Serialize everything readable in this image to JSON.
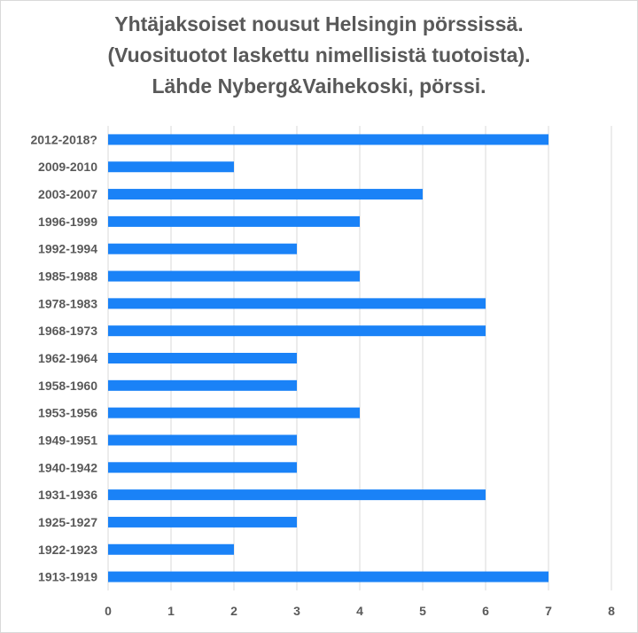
{
  "chart_data": {
    "type": "bar",
    "orientation": "horizontal",
    "title_lines": [
      "Yhtäjaksoiset nousut Helsingin pörssissä.",
      "(Vuosituotot laskettu nimellisistä tuotoista).",
      "Lähde Nyberg&Vaihekoski, pörssi."
    ],
    "categories": [
      "2012-2018?",
      "2009-2010",
      "2003-2007",
      "1996-1999",
      "1992-1994",
      "1985-1988",
      "1978-1983",
      "1968-1973",
      "1962-1964",
      "1958-1960",
      "1953-1956",
      "1949-1951",
      "1940-1942",
      "1931-1936",
      "1925-1927",
      "1922-1923",
      "1913-1919"
    ],
    "values": [
      7,
      2,
      5,
      4,
      3,
      4,
      6,
      6,
      3,
      3,
      4,
      3,
      3,
      6,
      3,
      2,
      7
    ],
    "xlim": [
      0,
      8
    ],
    "xticks": [
      "0",
      "1",
      "2",
      "3",
      "4",
      "5",
      "6",
      "7",
      "8"
    ],
    "grid": true,
    "legend": "none",
    "bar_color": "#1a82f7",
    "grid_color": "#d9d9d9",
    "text_color": "#595959"
  }
}
